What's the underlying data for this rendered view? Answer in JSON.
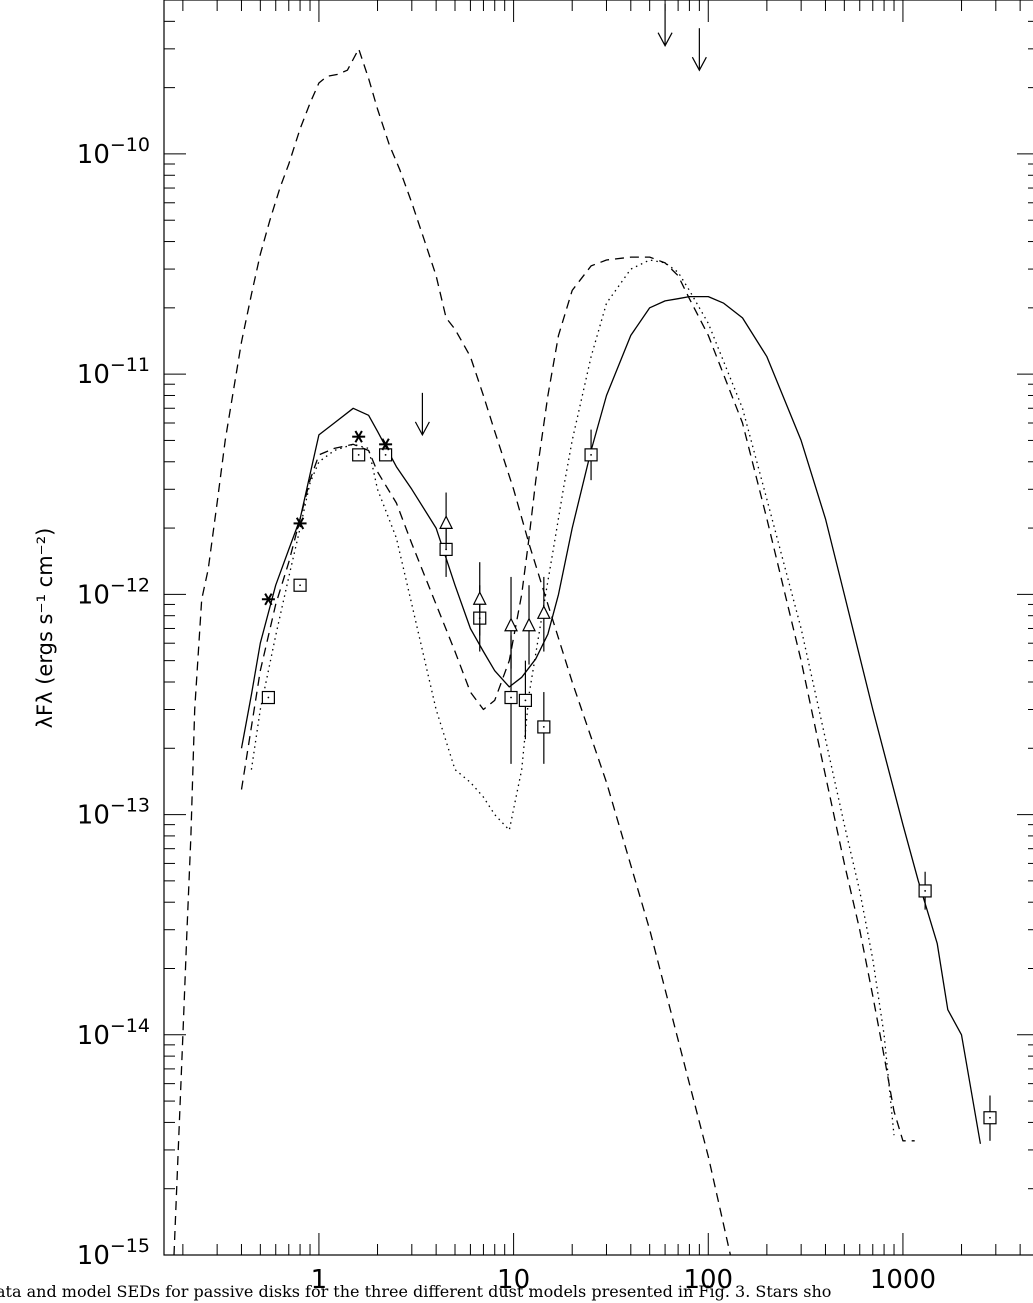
{
  "chart_data": {
    "type": "scatter",
    "title": "",
    "xlabel": "",
    "ylabel": "λFλ (ergs s⁻¹ cm⁻²)",
    "xscale": "log",
    "yscale": "log",
    "xlim": [
      0.16,
      5000
    ],
    "ylim": [
      1e-15,
      5e-10
    ],
    "x_ticks": [
      1,
      10,
      100,
      1000
    ],
    "x_tick_labels": [
      "1",
      "10",
      "100",
      "1000"
    ],
    "y_ticks": [
      1e-15,
      1e-14,
      1e-13,
      1e-12,
      1e-11,
      1e-10
    ],
    "y_tick_labels": [
      {
        "base": "10",
        "exp": "−15"
      },
      {
        "base": "10",
        "exp": "−14"
      },
      {
        "base": "10",
        "exp": "−13"
      },
      {
        "base": "10",
        "exp": "−12"
      },
      {
        "base": "10",
        "exp": "−11"
      },
      {
        "base": "10",
        "exp": "−10"
      }
    ],
    "grid": false,
    "series": [
      {
        "style": "dashed",
        "x": [
          0.18,
          0.2,
          0.21,
          0.22,
          0.23,
          0.25,
          0.27,
          0.3,
          0.33,
          0.36,
          0.4,
          0.45,
          0.5,
          0.56,
          0.63,
          0.7,
          0.8,
          0.9,
          1.0,
          1.1,
          1.25,
          1.4,
          1.6,
          1.8,
          2.0,
          2.3,
          2.6,
          3.0,
          3.5,
          4.0,
          4.5,
          5.0,
          6.0,
          7.0,
          8.0,
          10,
          12,
          15,
          20,
          30,
          50,
          80,
          100,
          130
        ],
        "y": [
          1e-15,
          1e-14,
          3e-14,
          8e-14,
          3e-13,
          9.5e-13,
          1.3e-12,
          2.6e-12,
          5e-12,
          8e-12,
          1.4e-11,
          2.3e-11,
          3.5e-11,
          5e-11,
          7e-11,
          9e-11,
          1.3e-10,
          1.7e-10,
          2.1e-10,
          2.25e-10,
          2.3e-10,
          2.4e-10,
          3e-10,
          2.2e-10,
          1.6e-10,
          1.1e-10,
          8.5e-11,
          6e-11,
          4e-11,
          2.8e-11,
          1.8e-11,
          1.6e-11,
          1.2e-11,
          8e-12,
          5.5e-12,
          3e-12,
          1.7e-12,
          9e-13,
          4e-13,
          1.4e-13,
          3e-14,
          6e-15,
          2.8e-15,
          1e-15
        ]
      },
      {
        "style": "solid",
        "x": [
          0.4,
          0.45,
          0.5,
          0.6,
          0.7,
          0.8,
          0.9,
          1.0,
          1.2,
          1.5,
          1.8,
          2.0,
          2.5,
          3.0,
          4.0,
          5.0,
          6.0,
          7.0,
          8.0,
          9.5,
          11,
          13,
          15,
          17,
          20,
          25,
          30,
          40,
          50,
          60,
          70,
          80,
          100,
          120,
          150,
          200,
          300,
          400,
          500,
          700,
          1000,
          1200,
          1500,
          1700,
          2000,
          2500
        ],
        "y": [
          2e-13,
          3.5e-13,
          6e-13,
          1.1e-12,
          1.6e-12,
          2.2e-12,
          3.5e-12,
          5.3e-12,
          6e-12,
          7e-12,
          6.5e-12,
          5.5e-12,
          3.8e-12,
          3e-12,
          2e-12,
          1.1e-12,
          7e-13,
          5.5e-13,
          4.5e-13,
          3.8e-13,
          4.2e-13,
          5.1e-13,
          6.6e-13,
          1e-12,
          2e-12,
          4.5e-12,
          8e-12,
          1.5e-11,
          2e-11,
          2.15e-11,
          2.2e-11,
          2.25e-11,
          2.25e-11,
          2.1e-11,
          1.8e-11,
          1.2e-11,
          5e-12,
          2.2e-12,
          1e-12,
          3e-13,
          9e-14,
          5e-14,
          2.6e-14,
          1.3e-14,
          1e-14,
          3.2e-15
        ]
      },
      {
        "style": "dashed",
        "x": [
          0.4,
          0.45,
          0.5,
          0.6,
          0.7,
          0.8,
          0.9,
          1.0,
          1.2,
          1.5,
          1.8,
          2.0,
          2.5,
          3.0,
          4.0,
          5.0,
          6.0,
          7.0,
          8.0,
          9.5,
          11,
          12,
          13,
          15,
          17,
          20,
          25,
          30,
          40,
          50,
          60,
          70,
          80,
          100,
          150,
          200,
          300,
          400,
          500,
          600,
          700,
          800,
          900,
          1000,
          1100,
          1150
        ],
        "y": [
          1.3e-13,
          2.5e-13,
          4.5e-13,
          9e-13,
          1.4e-12,
          2.2e-12,
          3.3e-12,
          4.3e-12,
          4.6e-12,
          4.8e-12,
          4.5e-12,
          3.6e-12,
          2.6e-12,
          1.7e-12,
          9e-13,
          5.5e-13,
          3.6e-13,
          3e-13,
          3.3e-13,
          5e-13,
          1e-12,
          1.8e-12,
          3.3e-12,
          8e-12,
          1.5e-11,
          2.4e-11,
          3.1e-11,
          3.3e-11,
          3.4e-11,
          3.4e-11,
          3.2e-11,
          2.8e-11,
          2.2e-11,
          1.5e-11,
          6e-12,
          2.2e-12,
          5e-13,
          1.5e-13,
          6e-14,
          3e-14,
          1.5e-14,
          8e-15,
          4.5e-15,
          3.3e-15,
          3.3e-15,
          3.3e-15
        ]
      },
      {
        "style": "dotted",
        "x": [
          0.45,
          0.5,
          0.6,
          0.7,
          0.8,
          0.9,
          1.0,
          1.2,
          1.5,
          1.8,
          2.0,
          2.5,
          3.0,
          4.0,
          5.0,
          6.0,
          7.0,
          8.0,
          9.5,
          11,
          12,
          14,
          16,
          18,
          20,
          25,
          30,
          40,
          50,
          60,
          70,
          80,
          100,
          150,
          200,
          300,
          400,
          500,
          600,
          700,
          800,
          900
        ],
        "y": [
          1.6e-13,
          3e-13,
          6.5e-13,
          1.2e-12,
          2e-12,
          3.2e-12,
          4e-12,
          4.5e-12,
          4.8e-12,
          4.6e-12,
          3e-12,
          1.8e-12,
          9e-13,
          3e-13,
          1.6e-13,
          1.4e-13,
          1.2e-13,
          1e-13,
          8.5e-14,
          1.6e-13,
          3.5e-13,
          8e-13,
          1.6e-12,
          3e-12,
          5e-12,
          1.2e-11,
          2.1e-11,
          3e-11,
          3.3e-11,
          3.2e-11,
          2.9e-11,
          2.4e-11,
          1.7e-11,
          7e-12,
          2.7e-12,
          7e-13,
          2.2e-13,
          9e-14,
          4.5e-14,
          2.2e-14,
          1e-14,
          3.5e-15
        ]
      }
    ],
    "markers": {
      "stars": [
        {
          "x": 0.55,
          "y": 9.5e-13
        },
        {
          "x": 0.8,
          "y": 2.1e-12
        },
        {
          "x": 1.6,
          "y": 5.2e-12
        },
        {
          "x": 2.2,
          "y": 4.8e-12
        }
      ],
      "squares": [
        {
          "x": 0.55,
          "y": 3.4e-13
        },
        {
          "x": 0.8,
          "y": 1.1e-12
        },
        {
          "x": 1.6,
          "y": 4.3e-12
        },
        {
          "x": 2.2,
          "y": 4.3e-12
        },
        {
          "x": 4.5,
          "y": 1.6e-12,
          "err": [
            1.2e-12,
            2.1e-12
          ]
        },
        {
          "x": 6.7,
          "y": 7.8e-13,
          "err": [
            5.5e-13,
            1.1e-12
          ]
        },
        {
          "x": 9.7,
          "y": 3.4e-13,
          "err": [
            1.7e-13,
            6.5e-13
          ]
        },
        {
          "x": 11.5,
          "y": 3.3e-13,
          "err": [
            2.2e-13,
            5e-13
          ]
        },
        {
          "x": 14.3,
          "y": 2.5e-13,
          "err": [
            1.7e-13,
            3.6e-13
          ]
        },
        {
          "x": 25,
          "y": 4.3e-12,
          "err": [
            3.3e-12,
            5.6e-12
          ]
        },
        {
          "x": 1300,
          "y": 4.5e-14,
          "err": [
            3.7e-14,
            5.5e-14
          ]
        },
        {
          "x": 2800,
          "y": 4.2e-15,
          "err": [
            3.3e-15,
            5.3e-15
          ]
        }
      ],
      "triangles": [
        {
          "x": 4.5,
          "y": 2.1e-12,
          "err": [
            1.6e-12,
            2.9e-12
          ]
        },
        {
          "x": 6.7,
          "y": 9.5e-13,
          "err": [
            6.5e-13,
            1.4e-12
          ]
        },
        {
          "x": 9.7,
          "y": 7.2e-13,
          "err": [
            4.6e-13,
            1.2e-12
          ]
        },
        {
          "x": 12,
          "y": 7.2e-13,
          "err": [
            4.8e-13,
            1.1e-12
          ]
        },
        {
          "x": 14.3,
          "y": 8.2e-13,
          "err": [
            5.5e-13,
            1.2e-12
          ]
        }
      ],
      "upper_limits": [
        {
          "x": 3.4,
          "y": 5.3e-12
        },
        {
          "x": 60,
          "y": 3.1e-10
        },
        {
          "x": 90,
          "y": 2.4e-10
        }
      ]
    },
    "caption": "ata and model SEDs for passive disks for the three different dust models presented in Fig. 3. Stars sho"
  }
}
